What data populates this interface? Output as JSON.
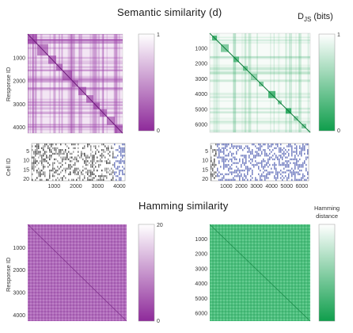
{
  "titles": {
    "semantic": "Semantic similarity (d)",
    "hamming": "Hamming similarity"
  },
  "colorbar_labels": {
    "djs_main": "D",
    "djs_sub": "JS",
    "djs_unit": "(bits)",
    "hamming_line1": "Hamming",
    "hamming_line2": "distance"
  },
  "axis_labels": {
    "response_id": "Response ID",
    "cell_id": "Cell ID"
  },
  "colors": {
    "purple": "#8e2a9a",
    "green": "#0f9e4c",
    "blue": "#3b4aa8"
  },
  "chart_data": [
    {
      "type": "heatmap",
      "name": "semantic-purple",
      "colormap": "purple",
      "yticks": [
        "1000",
        "2000",
        "3000",
        "4000"
      ],
      "cbar_ticks": [
        "1",
        "0"
      ],
      "cbar_range": [
        0,
        1
      ],
      "xlim": [
        1,
        4200
      ],
      "ylim": [
        1,
        4200
      ]
    },
    {
      "type": "heatmap",
      "name": "semantic-green",
      "colormap": "green",
      "yticks": [
        "1000",
        "2000",
        "3000",
        "4000",
        "5000",
        "6000"
      ],
      "cbar_ticks": [
        "1",
        "0"
      ],
      "cbar_range": [
        0,
        1
      ],
      "xlim": [
        1,
        6400
      ],
      "ylim": [
        1,
        6400
      ]
    },
    {
      "type": "heatmap",
      "name": "cell-raster-left",
      "yticks": [
        "5",
        "10",
        "15",
        "20"
      ],
      "xticks": [
        "1000",
        "2000",
        "3000",
        "4000"
      ],
      "xlim": [
        1,
        4200
      ],
      "ylim": [
        1,
        20
      ]
    },
    {
      "type": "heatmap",
      "name": "cell-raster-right",
      "yticks": [
        "5",
        "10",
        "15",
        "20"
      ],
      "xticks": [
        "1000",
        "2000",
        "3000",
        "4000",
        "5000",
        "6000"
      ],
      "xlim": [
        1,
        6400
      ],
      "ylim": [
        1,
        20
      ]
    },
    {
      "type": "heatmap",
      "name": "hamming-purple",
      "colormap": "purple",
      "yticks": [
        "1000",
        "2000",
        "3000",
        "4000"
      ],
      "cbar_ticks": [
        "20",
        "0"
      ],
      "cbar_range": [
        0,
        20
      ],
      "xlim": [
        1,
        4200
      ],
      "ylim": [
        1,
        4200
      ]
    },
    {
      "type": "heatmap",
      "name": "hamming-green",
      "colormap": "green",
      "yticks": [
        "1000",
        "2000",
        "3000",
        "4000",
        "5000",
        "6000"
      ],
      "cbar_ticks": [],
      "cbar_range": [
        0,
        20
      ],
      "xlim": [
        1,
        6400
      ],
      "ylim": [
        1,
        6400
      ]
    }
  ]
}
